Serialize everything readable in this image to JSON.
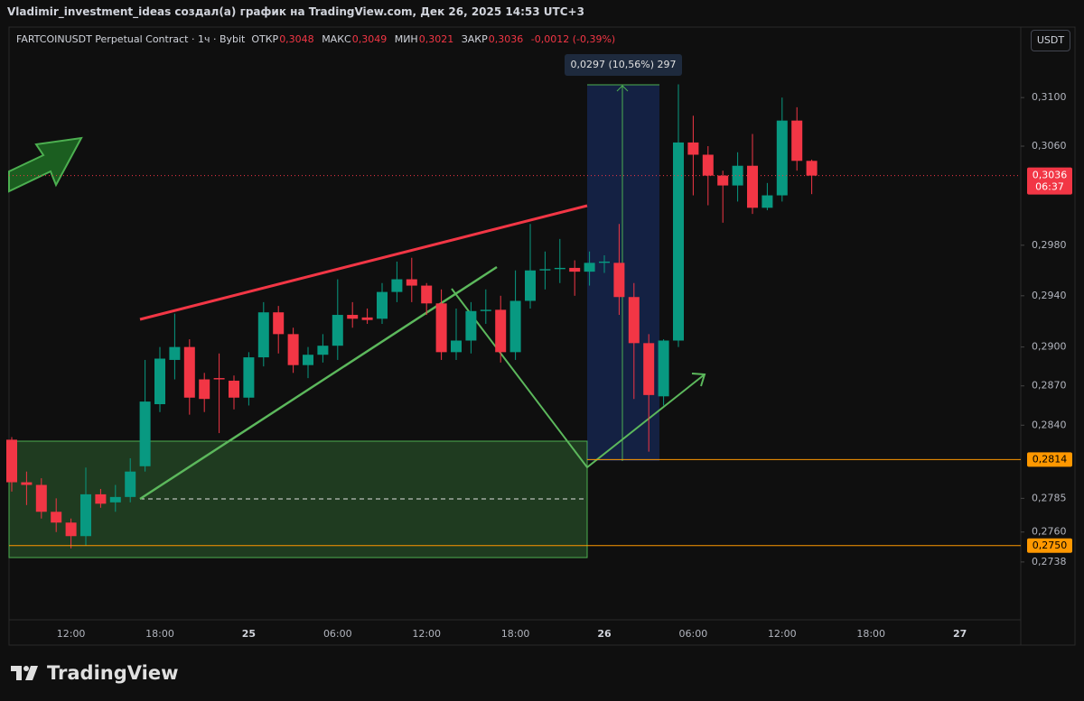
{
  "header": {
    "title": "Vladimir_investment_ideas создал(а) график на TradingView.com, Дек 26, 2025 14:53 UTC+3"
  },
  "legend": {
    "symbol": "FARTCOINUSDT Perpetual Contract · 1ч · Bybit",
    "items": [
      {
        "key": "ОТКР",
        "value": "0,3048"
      },
      {
        "key": "МАКС",
        "value": "0,3049"
      },
      {
        "key": "МИН",
        "value": "0,3021"
      },
      {
        "key": "ЗАКР",
        "value": "0,3036"
      }
    ],
    "change": "-0,0012 (-0,39%)"
  },
  "currency_button": "USDT",
  "brand": "TradingView",
  "chart_data": {
    "type": "candlestick",
    "categories": [
      null,
      null,
      null,
      null,
      "12:00",
      null,
      null,
      null,
      null,
      null,
      "18:00",
      null,
      null,
      null,
      null,
      null,
      "25",
      null,
      null,
      null,
      null,
      null,
      "06:00",
      null,
      null,
      null,
      null,
      null,
      "12:00",
      null,
      null,
      null,
      null,
      null,
      "18:00",
      null,
      null,
      null,
      null,
      null,
      "26",
      null,
      null,
      null,
      null,
      null,
      "06:00",
      null,
      null,
      null,
      null,
      null,
      "12:00",
      null,
      null,
      null,
      null,
      null,
      "18:00",
      null,
      null,
      null,
      null,
      null,
      "27",
      null,
      null,
      null,
      null
    ],
    "open": [
      0.2829,
      0.2797,
      0.2795,
      0.2775,
      0.2767,
      0.2757,
      0.2788,
      0.2782,
      0.2786,
      0.2809,
      0.2856,
      0.289,
      0.29,
      0.2875,
      0.2876,
      0.2874,
      0.2861,
      0.2892,
      0.2927,
      0.291,
      0.2886,
      0.2894,
      0.2901,
      0.2925,
      0.2923,
      0.2922,
      0.2943,
      0.2953,
      0.2948,
      0.2934,
      0.2896,
      0.2905,
      0.2928,
      0.2929,
      0.2896,
      0.2936,
      0.296,
      0.2961,
      0.2962,
      0.2959,
      0.2966,
      0.2966,
      0.2939,
      0.2903,
      0.2862,
      0.2905,
      0.3063,
      0.3053,
      0.3036,
      0.3028,
      0.3044,
      0.301,
      0.302,
      0.3081,
      0.3048,
      null,
      null,
      null,
      null,
      null,
      null,
      null,
      null,
      null,
      null,
      null,
      null,
      null,
      null
    ],
    "high": [
      0.2831,
      0.2805,
      0.28,
      0.2785,
      0.277,
      0.2808,
      0.2792,
      0.2795,
      0.2815,
      0.289,
      0.29,
      0.2926,
      0.2906,
      0.288,
      0.2895,
      0.2878,
      0.2896,
      0.2935,
      0.2932,
      0.2915,
      0.29,
      0.291,
      0.2953,
      0.2935,
      0.293,
      0.295,
      0.2967,
      0.297,
      0.295,
      0.2945,
      0.293,
      0.2935,
      0.2945,
      0.294,
      0.296,
      0.2997,
      0.2975,
      0.2985,
      0.2968,
      0.2975,
      0.2972,
      0.2997,
      0.295,
      0.291,
      0.2906,
      0.3111,
      0.3085,
      0.306,
      0.304,
      0.3055,
      0.307,
      0.303,
      0.31,
      0.3092,
      0.3049,
      null,
      null,
      null,
      null,
      null,
      null,
      null,
      null,
      null,
      null,
      null,
      null,
      null,
      null
    ],
    "low": [
      0.279,
      0.278,
      0.277,
      0.276,
      0.2748,
      0.275,
      0.2778,
      0.2775,
      0.2782,
      0.2805,
      0.285,
      0.2875,
      0.2848,
      0.285,
      0.2834,
      0.2852,
      0.2855,
      0.2885,
      0.2895,
      0.288,
      0.2876,
      0.2888,
      0.289,
      0.2915,
      0.2918,
      0.2918,
      0.2935,
      0.2935,
      0.2925,
      0.289,
      0.289,
      0.2895,
      0.2918,
      0.2888,
      0.289,
      0.293,
      0.2945,
      0.295,
      0.294,
      0.2948,
      0.2958,
      0.2925,
      0.286,
      0.282,
      0.2855,
      0.29,
      0.302,
      0.3012,
      0.2998,
      0.3015,
      0.3005,
      0.3008,
      0.3015,
      0.304,
      0.3021,
      null,
      null,
      null,
      null,
      null,
      null,
      null,
      null,
      null,
      null,
      null,
      null,
      null,
      null
    ],
    "close": [
      0.2797,
      0.2795,
      0.2775,
      0.2767,
      0.2757,
      0.2788,
      0.2781,
      0.2786,
      0.2805,
      0.2858,
      0.2891,
      0.29,
      0.2861,
      0.286,
      0.2875,
      0.2861,
      0.2892,
      0.2927,
      0.291,
      0.2886,
      0.2894,
      0.2901,
      0.2925,
      0.2922,
      0.2921,
      0.2943,
      0.2953,
      0.2948,
      0.2934,
      0.2896,
      0.2905,
      0.2928,
      0.2929,
      0.2896,
      0.2936,
      0.296,
      0.2961,
      0.2962,
      0.2959,
      0.2966,
      0.2967,
      0.2939,
      0.2903,
      0.2863,
      0.2905,
      0.3063,
      0.3053,
      0.3036,
      0.3028,
      0.3044,
      0.301,
      0.302,
      0.3081,
      0.3048,
      0.3036,
      null,
      null,
      null,
      null,
      null,
      null,
      null,
      null,
      null,
      null,
      null,
      null,
      null,
      null
    ],
    "up_color": "#089981",
    "down_color": "#f23645",
    "ylim": [
      0.2696,
      0.3159
    ],
    "log_scale": true,
    "grid": false,
    "yticks": [
      {
        "value": 0.31,
        "label": "0,3100"
      },
      {
        "value": 0.306,
        "label": "0,3060"
      },
      {
        "value": 0.298,
        "label": "0,2980"
      },
      {
        "value": 0.294,
        "label": "0,2940"
      },
      {
        "value": 0.29,
        "label": "0,2900"
      },
      {
        "value": 0.287,
        "label": "0,2870"
      },
      {
        "value": 0.284,
        "label": "0,2840"
      },
      {
        "value": 0.2785,
        "label": "0,2785"
      },
      {
        "value": 0.276,
        "label": "0,2760"
      },
      {
        "value": 0.2738,
        "label": "0,2738"
      }
    ],
    "price_lines": [
      {
        "value": 0.2814,
        "label": "0,2814",
        "color": "#ff9800"
      },
      {
        "value": 0.275,
        "label": "0,2750",
        "color": "#ff9800"
      }
    ],
    "last_price": {
      "value": 0.3036,
      "label": "0,3036",
      "countdown": "06:37",
      "color": "#f23645"
    },
    "annotation": "0,0297 (10,56%) 297"
  }
}
